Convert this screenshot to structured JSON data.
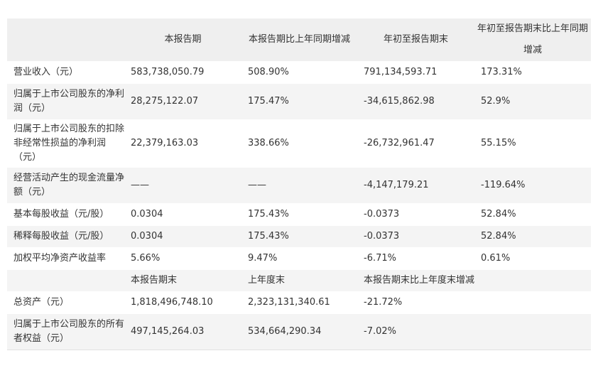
{
  "header": {
    "col0": "",
    "col1": "本报告期",
    "col2": "本报告期比上年同期增减",
    "col3": "年初至报告期末",
    "col4": "年初至报告期末比上年同期增减"
  },
  "rows": [
    {
      "label": "营业收入（元）",
      "v1": "583,738,050.79",
      "v2": "508.90%",
      "v3": "791,134,593.71",
      "v4": "173.31%"
    },
    {
      "label": "归属于上市公司股东的净利润（元）",
      "v1": "28,275,122.07",
      "v2": "175.47%",
      "v3": "-34,615,862.98",
      "v4": "52.9%"
    },
    {
      "label": "归属于上市公司股东的扣除非经常性损益的净利润（元）",
      "v1": "22,379,163.03",
      "v2": "338.66%",
      "v3": "-26,732,961.47",
      "v4": "55.15%"
    },
    {
      "label": "经营活动产生的现金流量净额（元）",
      "v1": "——",
      "v2": "——",
      "v3": "-4,147,179.21",
      "v4": "-119.64%"
    },
    {
      "label": "基本每股收益（元/股）",
      "v1": "0.0304",
      "v2": "175.43%",
      "v3": "-0.0373",
      "v4": "52.84%"
    },
    {
      "label": "稀释每股收益（元/股）",
      "v1": "0.0304",
      "v2": "175.43%",
      "v3": "-0.0373",
      "v4": "52.84%"
    },
    {
      "label": "加权平均净资产收益率",
      "v1": "5.66%",
      "v2": "9.47%",
      "v3": "-6.71%",
      "v4": "0.61%"
    }
  ],
  "subheader": {
    "col0": "",
    "col1": "本报告期末",
    "col2": "上年度末",
    "col3": "本报告期末比上年度末增减"
  },
  "rows2": [
    {
      "label": "总资产（元）",
      "v1": "1,818,496,748.10",
      "v2": "2,323,131,340.61",
      "v3": "-21.72%"
    },
    {
      "label": "归属于上市公司股东的所有者权益（元）",
      "v1": "497,145,264.03",
      "v2": "534,664,290.34",
      "v3": "-7.02%"
    }
  ]
}
